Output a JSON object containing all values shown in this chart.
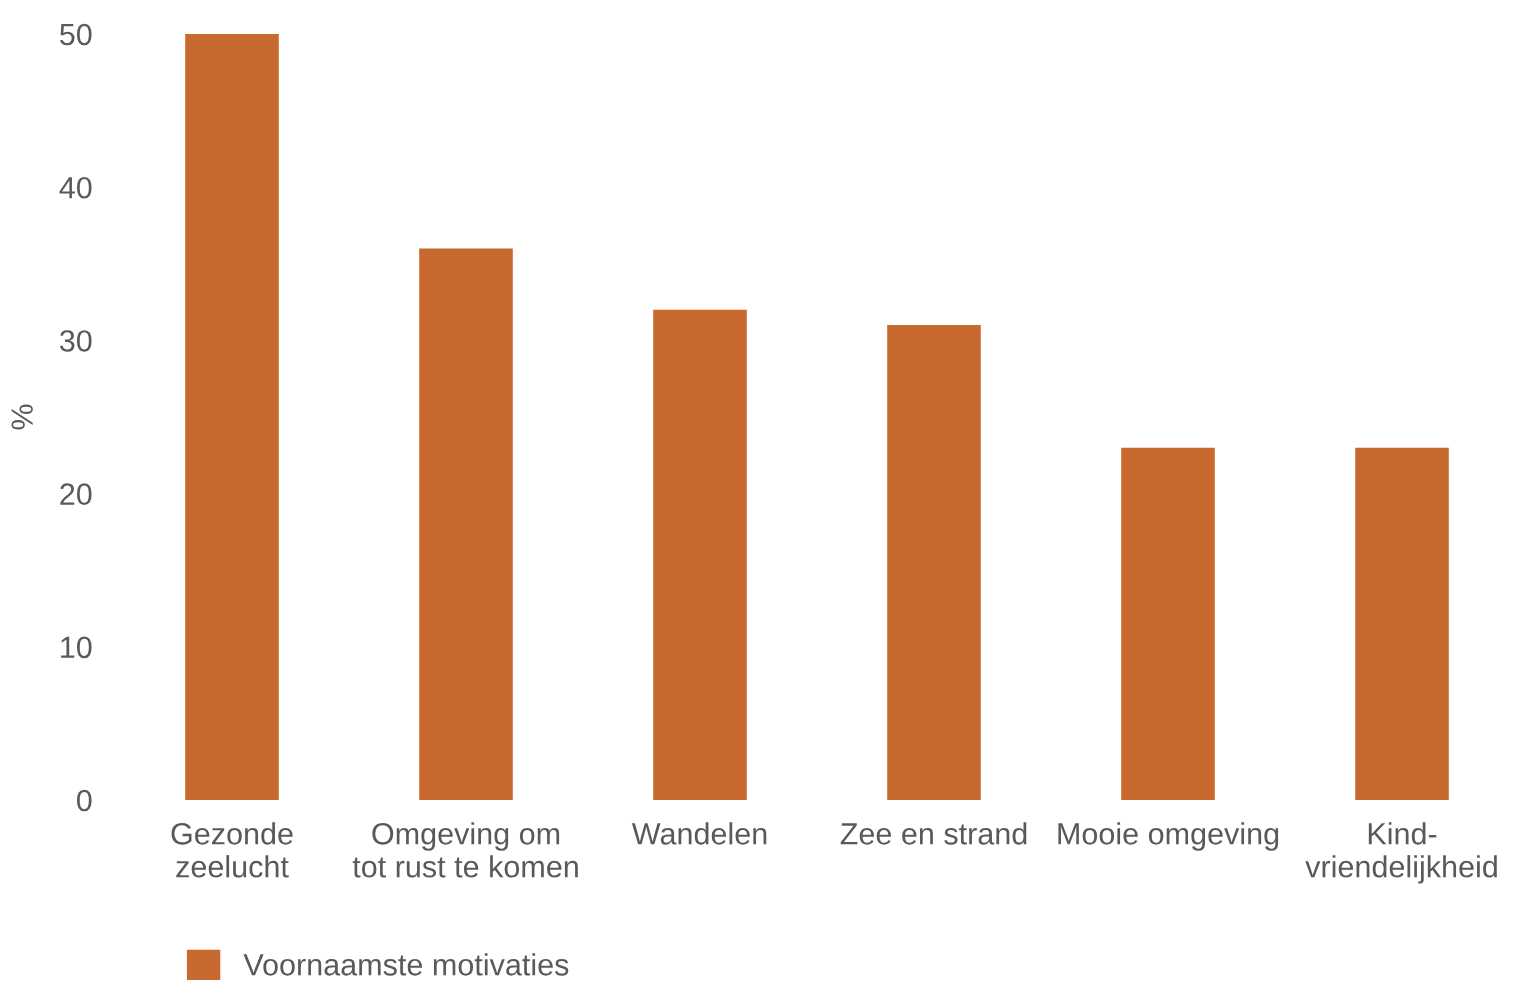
{
  "chart_data": {
    "type": "bar",
    "ylabel": "%",
    "categories": [
      "Gezonde\nzeelucht",
      "Omgeving om\ntot rust te komen",
      "Wandelen",
      "Zee en strand",
      "Mooie omgeving",
      "Kind-\nvriendelijkheid"
    ],
    "series": [
      {
        "name": "Voornaamste motivaties",
        "color": "#c8692f",
        "values": [
          50,
          36,
          32,
          31,
          23,
          23
        ]
      }
    ],
    "ylim": [
      0,
      50
    ],
    "yticks": [
      0,
      10,
      20,
      30,
      40,
      50
    ],
    "grid": false,
    "legend": "bottom left"
  }
}
